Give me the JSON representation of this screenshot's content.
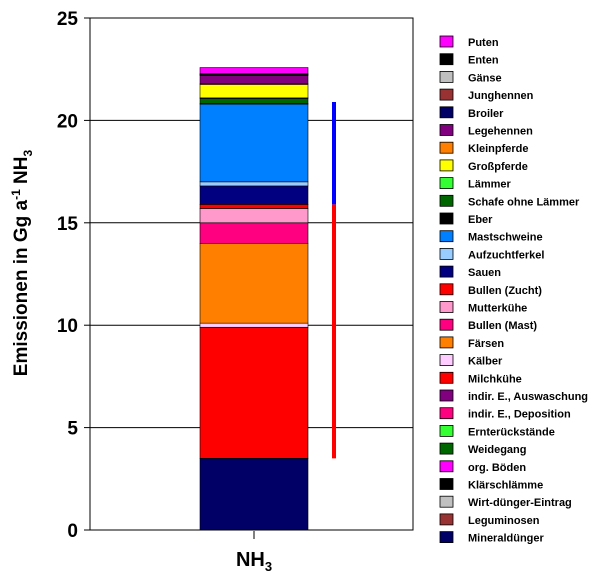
{
  "chart_data": {
    "type": "bar",
    "stacked": true,
    "categories": [
      "NH3"
    ],
    "category_label": {
      "main": "NH",
      "sub": "3"
    },
    "ylabel": {
      "main": "Emissionen in Gg a",
      "sup": "-1",
      "mid": " NH",
      "sub": "3"
    },
    "xlabel": "",
    "ylim": [
      0,
      25
    ],
    "yticks": [
      0,
      5,
      10,
      15,
      20,
      25
    ],
    "grid": true,
    "legend_position": "right",
    "series": [
      {
        "name": "Mineraldünger",
        "color": "#000066",
        "values": [
          3.5
        ]
      },
      {
        "name": "Leguminosen",
        "color": "#993333",
        "values": [
          0
        ]
      },
      {
        "name": "Wirt-dünger-Eintrag",
        "color": "#c0c0c0",
        "values": [
          0
        ]
      },
      {
        "name": "Klärschlämme",
        "color": "#000000",
        "values": [
          0
        ]
      },
      {
        "name": "org. Böden",
        "color": "#ff00ff",
        "values": [
          0
        ]
      },
      {
        "name": "Weidegang",
        "color": "#006600",
        "values": [
          0
        ]
      },
      {
        "name": "Ernterückstände",
        "color": "#33ff33",
        "values": [
          0
        ]
      },
      {
        "name": "indir. E., Deposition",
        "color": "#ff0080",
        "values": [
          0
        ]
      },
      {
        "name": "indir. E., Auswaschung",
        "color": "#800080",
        "values": [
          0
        ]
      },
      {
        "name": "Milchkühe",
        "color": "#ff0000",
        "values": [
          6.4
        ]
      },
      {
        "name": "Kälber",
        "color": "#ffccff",
        "values": [
          0.2
        ]
      },
      {
        "name": "Färsen",
        "color": "#ff8000",
        "values": [
          3.9
        ]
      },
      {
        "name": "Bullen (Mast)",
        "color": "#ff0080",
        "values": [
          1.0
        ]
      },
      {
        "name": "Mutterkühe",
        "color": "#ff99cc",
        "values": [
          0.7
        ]
      },
      {
        "name": "Bullen (Zucht)",
        "color": "#ff0000",
        "values": [
          0.2
        ]
      },
      {
        "name": "Sauen",
        "color": "#000080",
        "values": [
          0.9
        ]
      },
      {
        "name": "Aufzuchtferkel",
        "color": "#99ccff",
        "values": [
          0.2
        ]
      },
      {
        "name": "Mastschweine",
        "color": "#0080ff",
        "values": [
          3.8
        ]
      },
      {
        "name": "Eber",
        "color": "#000000",
        "values": [
          0.02
        ]
      },
      {
        "name": "Schafe ohne Lämmer",
        "color": "#006600",
        "values": [
          0.25
        ]
      },
      {
        "name": "Lämmer",
        "color": "#33ff33",
        "values": [
          0.03
        ]
      },
      {
        "name": "Großpferde",
        "color": "#ffff00",
        "values": [
          0.65
        ]
      },
      {
        "name": "Kleinpferde",
        "color": "#ff8000",
        "values": [
          0.05
        ]
      },
      {
        "name": "Legehennen",
        "color": "#800080",
        "values": [
          0.4
        ]
      },
      {
        "name": "Broiler",
        "color": "#000066",
        "values": [
          0.02
        ]
      },
      {
        "name": "Junghennen",
        "color": "#993333",
        "values": [
          0.02
        ]
      },
      {
        "name": "Gänse",
        "color": "#c0c0c0",
        "values": [
          0.02
        ]
      },
      {
        "name": "Enten",
        "color": "#000000",
        "values": [
          0.02
        ]
      },
      {
        "name": "Puten",
        "color": "#ff00ff",
        "values": [
          0.3
        ]
      }
    ],
    "legend_order": [
      "Puten",
      "Enten",
      "Gänse",
      "Junghennen",
      "Broiler",
      "Legehennen",
      "Kleinpferde",
      "Großpferde",
      "Lämmer",
      "Schafe ohne Lämmer",
      "Eber",
      "Mastschweine",
      "Aufzuchtferkel",
      "Sauen",
      "Bullen (Zucht)",
      "Mutterkühe",
      "Bullen (Mast)",
      "Färsen",
      "Kälber",
      "Milchkühe",
      "indir. E., Auswaschung",
      "indir. E., Deposition",
      "Ernterückstände",
      "Weidegang",
      "org. Böden",
      "Klärschlämme",
      "Wirt-dünger-Eintrag",
      "Leguminosen",
      "Mineraldünger"
    ],
    "range_markers": [
      {
        "color": "#ff0000",
        "from": 3.5,
        "to": 15.9
      },
      {
        "color": "#0000ff",
        "from": 15.9,
        "to": 20.9
      }
    ]
  }
}
